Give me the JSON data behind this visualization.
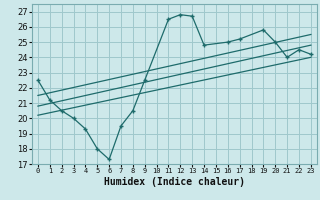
{
  "xlabel": "Humidex (Indice chaleur)",
  "bg_color": "#cde8ea",
  "grid_color": "#9fc8cc",
  "line_color": "#1e6b6b",
  "xlim": [
    -0.5,
    23.5
  ],
  "ylim": [
    17,
    27.5
  ],
  "yticks": [
    17,
    18,
    19,
    20,
    21,
    22,
    23,
    24,
    25,
    26,
    27
  ],
  "xticks": [
    0,
    1,
    2,
    3,
    4,
    5,
    6,
    7,
    8,
    9,
    10,
    11,
    12,
    13,
    14,
    15,
    16,
    17,
    18,
    19,
    20,
    21,
    22,
    23
  ],
  "zigzag_x": [
    0,
    1,
    2,
    3,
    4,
    5,
    6,
    7,
    8,
    9,
    11,
    12,
    13,
    14,
    16,
    17,
    19,
    20,
    21,
    22,
    23
  ],
  "zigzag_y": [
    22.5,
    21.2,
    20.5,
    20.0,
    19.3,
    18.0,
    17.3,
    19.5,
    20.5,
    22.5,
    26.5,
    26.8,
    26.7,
    24.8,
    25.0,
    25.2,
    25.8,
    25.0,
    24.0,
    24.5,
    24.2
  ],
  "line1_x": [
    0,
    23
  ],
  "line1_y": [
    21.5,
    25.5
  ],
  "line2_x": [
    0,
    23
  ],
  "line2_y": [
    20.8,
    24.8
  ],
  "line3_x": [
    0,
    23
  ],
  "line3_y": [
    20.2,
    24.0
  ]
}
